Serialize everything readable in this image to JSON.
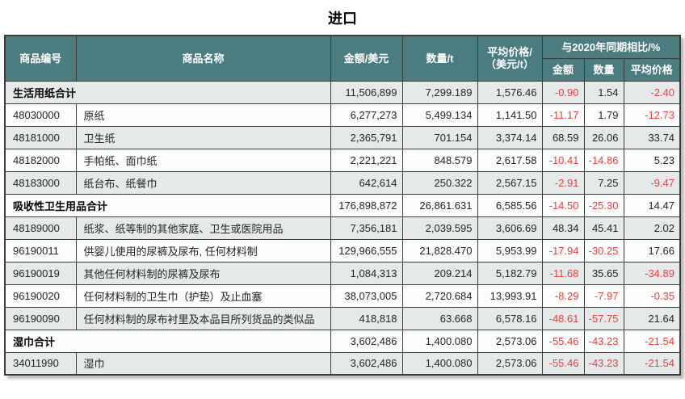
{
  "title": "进口",
  "colors": {
    "header_bg": "#4a7c80",
    "header_text": "#ffffff",
    "negative_value": "#e6423e",
    "row_stripe": "#e6e9ea",
    "row_plain": "#fbfcfc",
    "border": "#3c3c3c"
  },
  "table": {
    "headers": {
      "code": "商品编号",
      "name": "商品名称",
      "amount": "金额/美元",
      "quantity": "数量/t",
      "avg_price_line1": "平均价格/",
      "avg_price_line2": "（美元/t）",
      "yoy_group": "与2020年同期相比/%",
      "yoy_amount": "金额",
      "yoy_quantity": "数量",
      "yoy_avg_price": "平均价格"
    },
    "rows": [
      {
        "type": "total",
        "label": "生活用纸合计",
        "amount": "11,506,899",
        "quantity": "7,299.189",
        "avg_price": "1,576.46",
        "yoy_amount": "-0.90",
        "yoy_quantity": "1.54",
        "yoy_avg_price": "-2.40"
      },
      {
        "type": "item",
        "code": "48030000",
        "name": "原纸",
        "amount": "6,277,273",
        "quantity": "5,499.134",
        "avg_price": "1,141.50",
        "yoy_amount": "-11.17",
        "yoy_quantity": "1.79",
        "yoy_avg_price": "-12.73"
      },
      {
        "type": "item",
        "code": "48181000",
        "name": "卫生纸",
        "amount": "2,365,791",
        "quantity": "701.154",
        "avg_price": "3,374.14",
        "yoy_amount": "68.59",
        "yoy_quantity": "26.06",
        "yoy_avg_price": "33.74"
      },
      {
        "type": "item",
        "code": "48182000",
        "name": "手帕纸、面巾纸",
        "amount": "2,221,221",
        "quantity": "848.579",
        "avg_price": "2,617.58",
        "yoy_amount": "-10.41",
        "yoy_quantity": "-14.86",
        "yoy_avg_price": "5.23"
      },
      {
        "type": "item",
        "code": "48183000",
        "name": "纸台布、纸餐巾",
        "amount": "642,614",
        "quantity": "250.322",
        "avg_price": "2,567.15",
        "yoy_amount": "-2.91",
        "yoy_quantity": "7.25",
        "yoy_avg_price": "-9.47"
      },
      {
        "type": "total",
        "label": "吸收性卫生用品合计",
        "amount": "176,898,872",
        "quantity": "26,861.631",
        "avg_price": "6,585.56",
        "yoy_amount": "-14.50",
        "yoy_quantity": "-25.30",
        "yoy_avg_price": "14.47"
      },
      {
        "type": "item",
        "code": "48189000",
        "name": "纸浆、纸等制的其他家庭、卫生或医院用品",
        "amount": "7,356,181",
        "quantity": "2,039.595",
        "avg_price": "3,606.69",
        "yoy_amount": "48.34",
        "yoy_quantity": "45.41",
        "yoy_avg_price": "2.02"
      },
      {
        "type": "item",
        "code": "96190011",
        "name": "供婴儿使用的尿裤及尿布, 任何材料制",
        "amount": "129,966,555",
        "quantity": "21,828.470",
        "avg_price": "5,953.99",
        "yoy_amount": "-17.94",
        "yoy_quantity": "-30.25",
        "yoy_avg_price": "17.66"
      },
      {
        "type": "item",
        "code": "96190019",
        "name": "其他任何材料制的尿裤及尿布",
        "amount": "1,084,313",
        "quantity": "209.214",
        "avg_price": "5,182.79",
        "yoy_amount": "-11.68",
        "yoy_quantity": "35.65",
        "yoy_avg_price": "-34.89"
      },
      {
        "type": "item",
        "code": "96190020",
        "name": "任何材料制的卫生巾（护垫）及止血塞",
        "amount": "38,073,005",
        "quantity": "2,720.684",
        "avg_price": "13,993.91",
        "yoy_amount": "-8.29",
        "yoy_quantity": "-7.97",
        "yoy_avg_price": "-0.35"
      },
      {
        "type": "item",
        "code": "96190090",
        "name": "任何材料制的尿布衬里及本品目所列货品的类似品",
        "amount": "418,818",
        "quantity": "63.668",
        "avg_price": "6,578.16",
        "yoy_amount": "-48.61",
        "yoy_quantity": "-57.75",
        "yoy_avg_price": "21.64"
      },
      {
        "type": "total",
        "label": "湿巾合计",
        "amount": "3,602,486",
        "quantity": "1,400.080",
        "avg_price": "2,573.06",
        "yoy_amount": "-55.46",
        "yoy_quantity": "-43.23",
        "yoy_avg_price": "-21.54"
      },
      {
        "type": "item",
        "code": "34011990",
        "name": "湿巾",
        "amount": "3,602,486",
        "quantity": "1,400.080",
        "avg_price": "2,573.06",
        "yoy_amount": "-55.46",
        "yoy_quantity": "-43.23",
        "yoy_avg_price": "-21.54"
      }
    ]
  }
}
